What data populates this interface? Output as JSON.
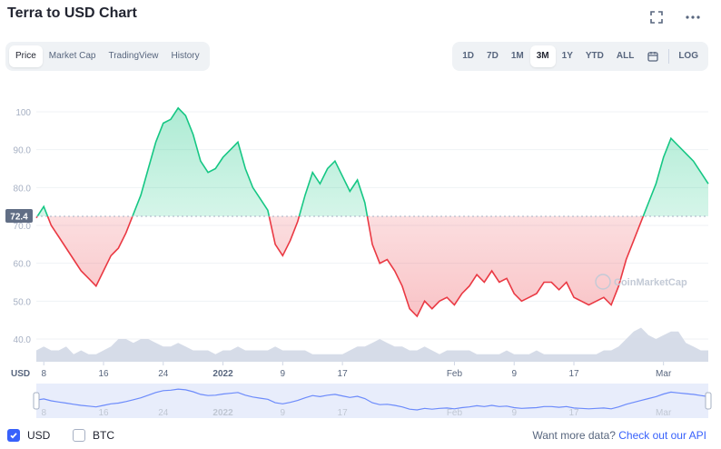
{
  "header": {
    "title": "Terra to USD Chart",
    "fullscreen_icon": "expand-icon",
    "more_icon": "more-dots-icon"
  },
  "tabs": [
    "Price",
    "Market Cap",
    "TradingView",
    "History"
  ],
  "active_tab": "Price",
  "ranges": [
    "1D",
    "7D",
    "1M",
    "3M",
    "1Y",
    "YTD",
    "ALL"
  ],
  "active_range": "3M",
  "calendar_icon": "calendar-icon",
  "log_label": "LOG",
  "footer": {
    "usd_label": "USD",
    "btc_label": "BTC",
    "api_text": "Want more data?",
    "api_link": "Check out our API"
  },
  "colors": {
    "up": "#16c784",
    "down": "#ea3943",
    "accent": "#3861fb",
    "volume": "#cfd6e4"
  },
  "watermark": "CoinMarketCap",
  "chart_data": {
    "type": "area",
    "ylabel": "USD",
    "ylim": [
      34,
      106
    ],
    "reference_price": 72.4,
    "reference_label": "72.4",
    "ytick_values": [
      40,
      50,
      60,
      70,
      80,
      90,
      100
    ],
    "ytick_labels": [
      "40.0",
      "50.0",
      "60.0",
      "70.0",
      "80.0",
      "90.0",
      "100"
    ],
    "xlim": [
      "2021-12-07",
      "2022-03-07"
    ],
    "xticks": [
      {
        "x": "2021-12-08",
        "label": "8"
      },
      {
        "x": "2021-12-16",
        "label": "16"
      },
      {
        "x": "2021-12-24",
        "label": "24"
      },
      {
        "x": "2022-01-01",
        "label": "2022"
      },
      {
        "x": "2022-01-09",
        "label": "9"
      },
      {
        "x": "2022-01-17",
        "label": "17"
      },
      {
        "x": "2022-02-01",
        "label": "Feb"
      },
      {
        "x": "2022-02-09",
        "label": "9"
      },
      {
        "x": "2022-02-17",
        "label": "17"
      },
      {
        "x": "2022-03-01",
        "label": "Mar"
      }
    ],
    "series": [
      {
        "x": [
          "2021-12-07",
          "2021-12-08",
          "2021-12-09",
          "2021-12-10",
          "2021-12-11",
          "2021-12-12",
          "2021-12-13",
          "2021-12-14",
          "2021-12-15",
          "2021-12-16",
          "2021-12-17",
          "2021-12-18",
          "2021-12-19",
          "2021-12-20",
          "2021-12-21",
          "2021-12-22",
          "2021-12-23",
          "2021-12-24",
          "2021-12-25",
          "2021-12-26",
          "2021-12-27",
          "2021-12-28",
          "2021-12-29",
          "2021-12-30",
          "2021-12-31",
          "2022-01-01",
          "2022-01-02",
          "2022-01-03",
          "2022-01-04",
          "2022-01-05",
          "2022-01-06",
          "2022-01-07",
          "2022-01-08",
          "2022-01-09",
          "2022-01-10",
          "2022-01-11",
          "2022-01-12",
          "2022-01-13",
          "2022-01-14",
          "2022-01-15",
          "2022-01-16",
          "2022-01-17",
          "2022-01-18",
          "2022-01-19",
          "2022-01-20",
          "2022-01-21",
          "2022-01-22",
          "2022-01-23",
          "2022-01-24",
          "2022-01-25",
          "2022-01-26",
          "2022-01-27",
          "2022-01-28",
          "2022-01-29",
          "2022-01-30",
          "2022-01-31",
          "2022-02-01",
          "2022-02-02",
          "2022-02-03",
          "2022-02-04",
          "2022-02-05",
          "2022-02-06",
          "2022-02-07",
          "2022-02-08",
          "2022-02-09",
          "2022-02-10",
          "2022-02-11",
          "2022-02-12",
          "2022-02-13",
          "2022-02-14",
          "2022-02-15",
          "2022-02-16",
          "2022-02-17",
          "2022-02-18",
          "2022-02-19",
          "2022-02-20",
          "2022-02-21",
          "2022-02-22",
          "2022-02-23",
          "2022-02-24",
          "2022-02-25",
          "2022-02-26",
          "2022-02-27",
          "2022-02-28",
          "2022-03-01",
          "2022-03-02",
          "2022-03-03",
          "2022-03-04",
          "2022-03-05",
          "2022-03-06",
          "2022-03-07"
        ],
        "y": [
          72,
          75,
          70,
          67,
          64,
          61,
          58,
          56,
          54,
          58,
          62,
          64,
          68,
          73,
          78,
          85,
          92,
          97,
          98,
          101,
          99,
          94,
          87,
          84,
          85,
          88,
          90,
          92,
          85,
          80,
          77,
          74,
          65,
          62,
          66,
          71,
          78,
          84,
          81,
          85,
          87,
          83,
          79,
          82,
          76,
          65,
          60,
          61,
          58,
          54,
          48,
          46,
          50,
          48,
          50,
          51,
          49,
          52,
          54,
          57,
          55,
          58,
          55,
          56,
          52,
          50,
          51,
          52,
          55,
          55,
          53,
          55,
          51,
          50,
          49,
          50,
          51,
          49,
          54,
          61,
          66,
          71,
          76,
          81,
          88,
          93,
          91,
          89,
          87,
          84,
          81
        ],
        "volume": [
          37,
          38,
          37,
          37,
          38,
          36,
          37,
          36,
          36,
          37,
          38,
          40,
          40,
          39,
          40,
          40,
          39,
          38,
          38,
          39,
          38,
          37,
          37,
          37,
          36,
          37,
          37,
          38,
          37,
          37,
          37,
          37,
          38,
          37,
          37,
          37,
          37,
          36,
          36,
          36,
          36,
          36,
          37,
          38,
          38,
          39,
          40,
          39,
          38,
          38,
          37,
          37,
          38,
          37,
          36,
          37,
          37,
          37,
          37,
          36,
          36,
          36,
          36,
          37,
          36,
          36,
          36,
          37,
          36,
          36,
          36,
          36,
          36,
          36,
          36,
          36,
          37,
          37,
          38,
          40,
          42,
          43,
          41,
          40,
          41,
          42,
          42,
          39,
          38,
          37,
          37
        ]
      }
    ]
  }
}
